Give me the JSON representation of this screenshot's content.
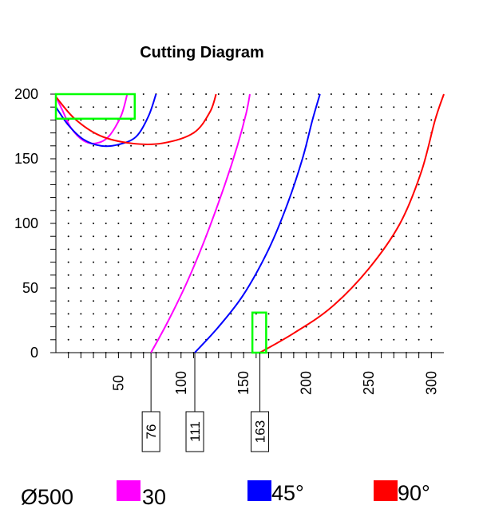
{
  "chart_data": {
    "type": "line",
    "title": "Cutting Diagram",
    "x_ticks": [
      "50",
      "100",
      "150",
      "200",
      "250",
      "300"
    ],
    "y_ticks": [
      "0",
      "50",
      "100",
      "150",
      "200"
    ],
    "xlim": [
      0,
      310
    ],
    "ylim": [
      0,
      200
    ],
    "grid": "dotted",
    "diameter_label": "Ø500",
    "series": [
      {
        "name": "30",
        "color": "#ff00ff",
        "x": [
          76,
          90,
          105,
          120,
          135,
          145,
          152,
          155
        ],
        "y": [
          0,
          25,
          55,
          90,
          130,
          160,
          185,
          200
        ]
      },
      {
        "name": "45°",
        "color": "#0000ff",
        "x": [
          111,
          130,
          150,
          170,
          185,
          197,
          205,
          211
        ],
        "y": [
          0,
          20,
          45,
          80,
          115,
          150,
          180,
          200
        ]
      },
      {
        "name": "90°",
        "color": "#ff0000",
        "x": [
          163,
          190,
          220,
          250,
          275,
          292,
          303,
          310
        ],
        "y": [
          0,
          15,
          35,
          65,
          100,
          140,
          180,
          200
        ]
      },
      {
        "name": "30",
        "color": "#ff00ff",
        "x": [
          0,
          5,
          12,
          22,
          32,
          42,
          52,
          57
        ],
        "y": [
          198,
          188,
          174,
          164,
          162,
          167,
          183,
          200
        ]
      },
      {
        "name": "45°",
        "color": "#0000ff",
        "x": [
          0,
          10,
          22,
          36,
          50,
          64,
          74,
          80
        ],
        "y": [
          190,
          176,
          165,
          160,
          161,
          167,
          183,
          200
        ]
      },
      {
        "name": "90°",
        "color": "#ff0000",
        "x": [
          0,
          15,
          35,
          60,
          85,
          110,
          123,
          128
        ],
        "y": [
          198,
          181,
          168,
          162,
          162,
          170,
          186,
          200
        ]
      }
    ],
    "highlight_boxes": [
      {
        "x": [
          0,
          63
        ],
        "y": [
          181,
          200
        ],
        "color": "#00ff00"
      },
      {
        "x": [
          157,
          168
        ],
        "y": [
          0,
          31
        ],
        "color": "#00ff00"
      }
    ],
    "markers": [
      {
        "value": 76,
        "label": "76"
      },
      {
        "value": 111,
        "label": "111"
      },
      {
        "value": 163,
        "label": "163"
      }
    ],
    "legend": [
      {
        "label": "30",
        "color": "#ff00ff"
      },
      {
        "label": "45°",
        "color": "#0000ff"
      },
      {
        "label": "90°",
        "color": "#ff0000"
      }
    ]
  }
}
